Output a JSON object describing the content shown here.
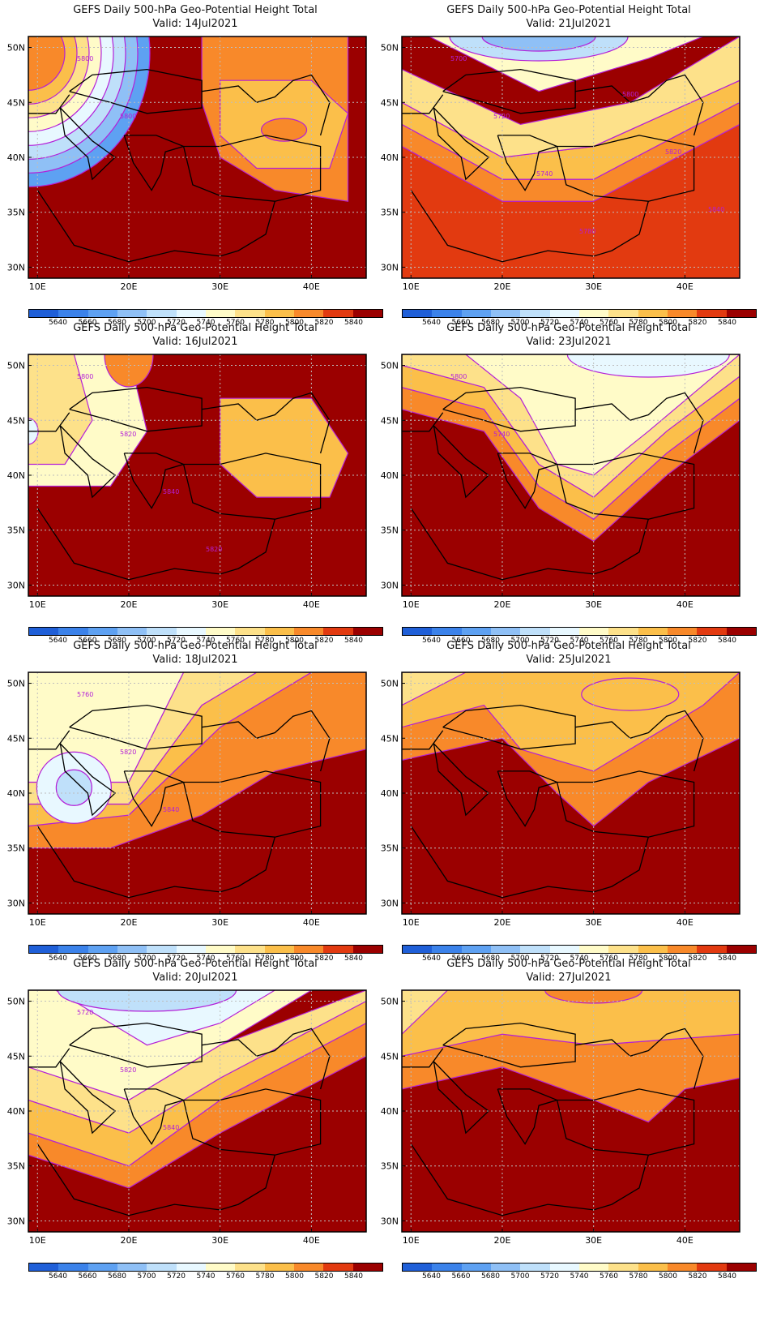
{
  "panels": [
    {
      "title": "GEFS Daily 500-hPa Geo-Potential Height Total",
      "valid": "Valid:  14Jul2021",
      "contour_labels": [
        "5800",
        "5800"
      ]
    },
    {
      "title": "GEFS Daily 500-hPa Geo-Potential Height Total",
      "valid": "Valid:  21Jul2021",
      "contour_labels": [
        "5700",
        "5720",
        "5740",
        "5780",
        "5800",
        "5820",
        "5840"
      ]
    },
    {
      "title": "GEFS Daily 500-hPa Geo-Potential Height Total",
      "valid": "Valid:  16Jul2021",
      "contour_labels": [
        "5800",
        "5820",
        "5840",
        "5820"
      ]
    },
    {
      "title": "GEFS Daily 500-hPa Geo-Potential Height Total",
      "valid": "Valid:  23Jul2021",
      "contour_labels": [
        "5800",
        "5740"
      ]
    },
    {
      "title": "GEFS Daily 500-hPa Geo-Potential Height Total",
      "valid": "Valid:  18Jul2021",
      "contour_labels": [
        "5760",
        "5820",
        "5840"
      ]
    },
    {
      "title": "GEFS Daily 500-hPa Geo-Potential Height Total",
      "valid": "Valid:  25Jul2021",
      "contour_labels": []
    },
    {
      "title": "GEFS Daily 500-hPa Geo-Potential Height Total",
      "valid": "Valid:  20Jul2021",
      "contour_labels": [
        "5720",
        "5820",
        "5840"
      ]
    },
    {
      "title": "GEFS Daily 500-hPa Geo-Potential Height Total",
      "valid": "Valid:  27Jul2021",
      "contour_labels": []
    }
  ],
  "axes": {
    "lat_labels": [
      "50N",
      "45N",
      "40N",
      "35N",
      "30N"
    ],
    "lon_labels": [
      "10E",
      "20E",
      "30E",
      "40E"
    ]
  },
  "colorbar": {
    "labels": [
      "5640",
      "5660",
      "5680",
      "5700",
      "5720",
      "5740",
      "5760",
      "5780",
      "5800",
      "5820",
      "5840"
    ],
    "colors": [
      "#1f5fd8",
      "#3b82ea",
      "#5ea1f2",
      "#8fc0f6",
      "#bfe0fa",
      "#e8f8ff",
      "#fffbc8",
      "#fde18a",
      "#fbbf4a",
      "#f8892a",
      "#e23a10",
      "#9b0000"
    ]
  },
  "colors": {
    "contour": "#b41fd8",
    "coast": "#000000",
    "grid": "#bdbdbd"
  }
}
